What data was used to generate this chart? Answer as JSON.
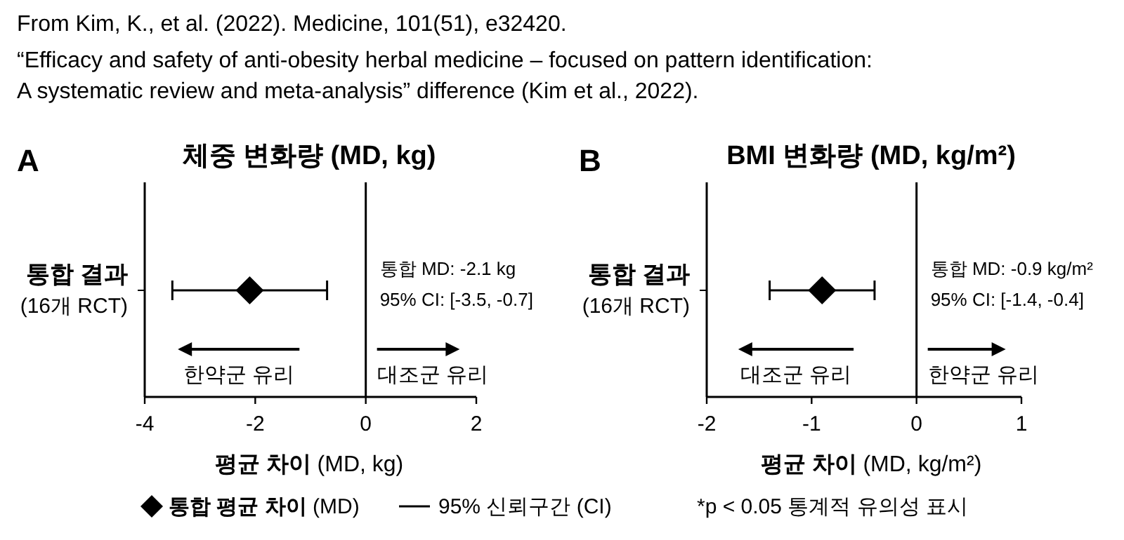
{
  "chart_data": [
    {
      "type": "other",
      "annotations": [
        "From Kim, K., et al. (2022). Medicine, 101(51), e32420.",
        "“Efficacy and safety of anti-obesity herbal medicine – focused on pattern identification:",
        "A systematic review and meta-analysis” difference (Kim et al., 2022)."
      ]
    },
    {
      "type": "scatter",
      "orientation": "horizontal",
      "title": "체중 변화량 (MD, kg)",
      "xlabel": "평균 차이 (MD, kg)",
      "categories": [
        "통합 결과\n(16개 RCT)"
      ],
      "color": "#000000",
      "values": [
        -2.1
      ],
      "errors": [
        [
          -3.5,
          -0.7
        ]
      ],
      "marker": "diamond",
      "xlim": [
        -4,
        2
      ],
      "xticks": [
        -4,
        -2,
        0,
        2
      ],
      "ref_lines": [
        {
          "axis": "x",
          "value": 0,
          "color": "#000000"
        }
      ],
      "annotations": [
        "A",
        "통합 MD: -2.1 kg",
        "95% CI: [-3.5, -0.7]",
        "한약군 유리",
        "대조군 유리"
      ]
    },
    {
      "type": "scatter",
      "orientation": "horizontal",
      "title": "BMI 변화량 (MD, kg/m²)",
      "xlabel": "평균 차이 (MD, kg/m²)",
      "categories": [
        "통합 결과\n(16개 RCT)"
      ],
      "color": "#000000",
      "values": [
        -0.9
      ],
      "errors": [
        [
          -1.4,
          -0.4
        ]
      ],
      "marker": "diamond",
      "xlim": [
        -2,
        1
      ],
      "xticks": [
        -2,
        -1,
        0,
        1
      ],
      "ref_lines": [
        {
          "axis": "x",
          "value": 0,
          "color": "#000000"
        }
      ],
      "annotations": [
        "B",
        "통합 MD: -0.9 kg/m²",
        "95% CI: [-1.4, -0.4]",
        "대조군 유리",
        "한약군 유리"
      ]
    },
    {
      "type": "other",
      "annotations": [
        "통합 평균 차이 (MD)",
        "95% 신뢰구간 (CI)",
        "*p < 0.05 통계적 유의성 표시"
      ]
    }
  ]
}
